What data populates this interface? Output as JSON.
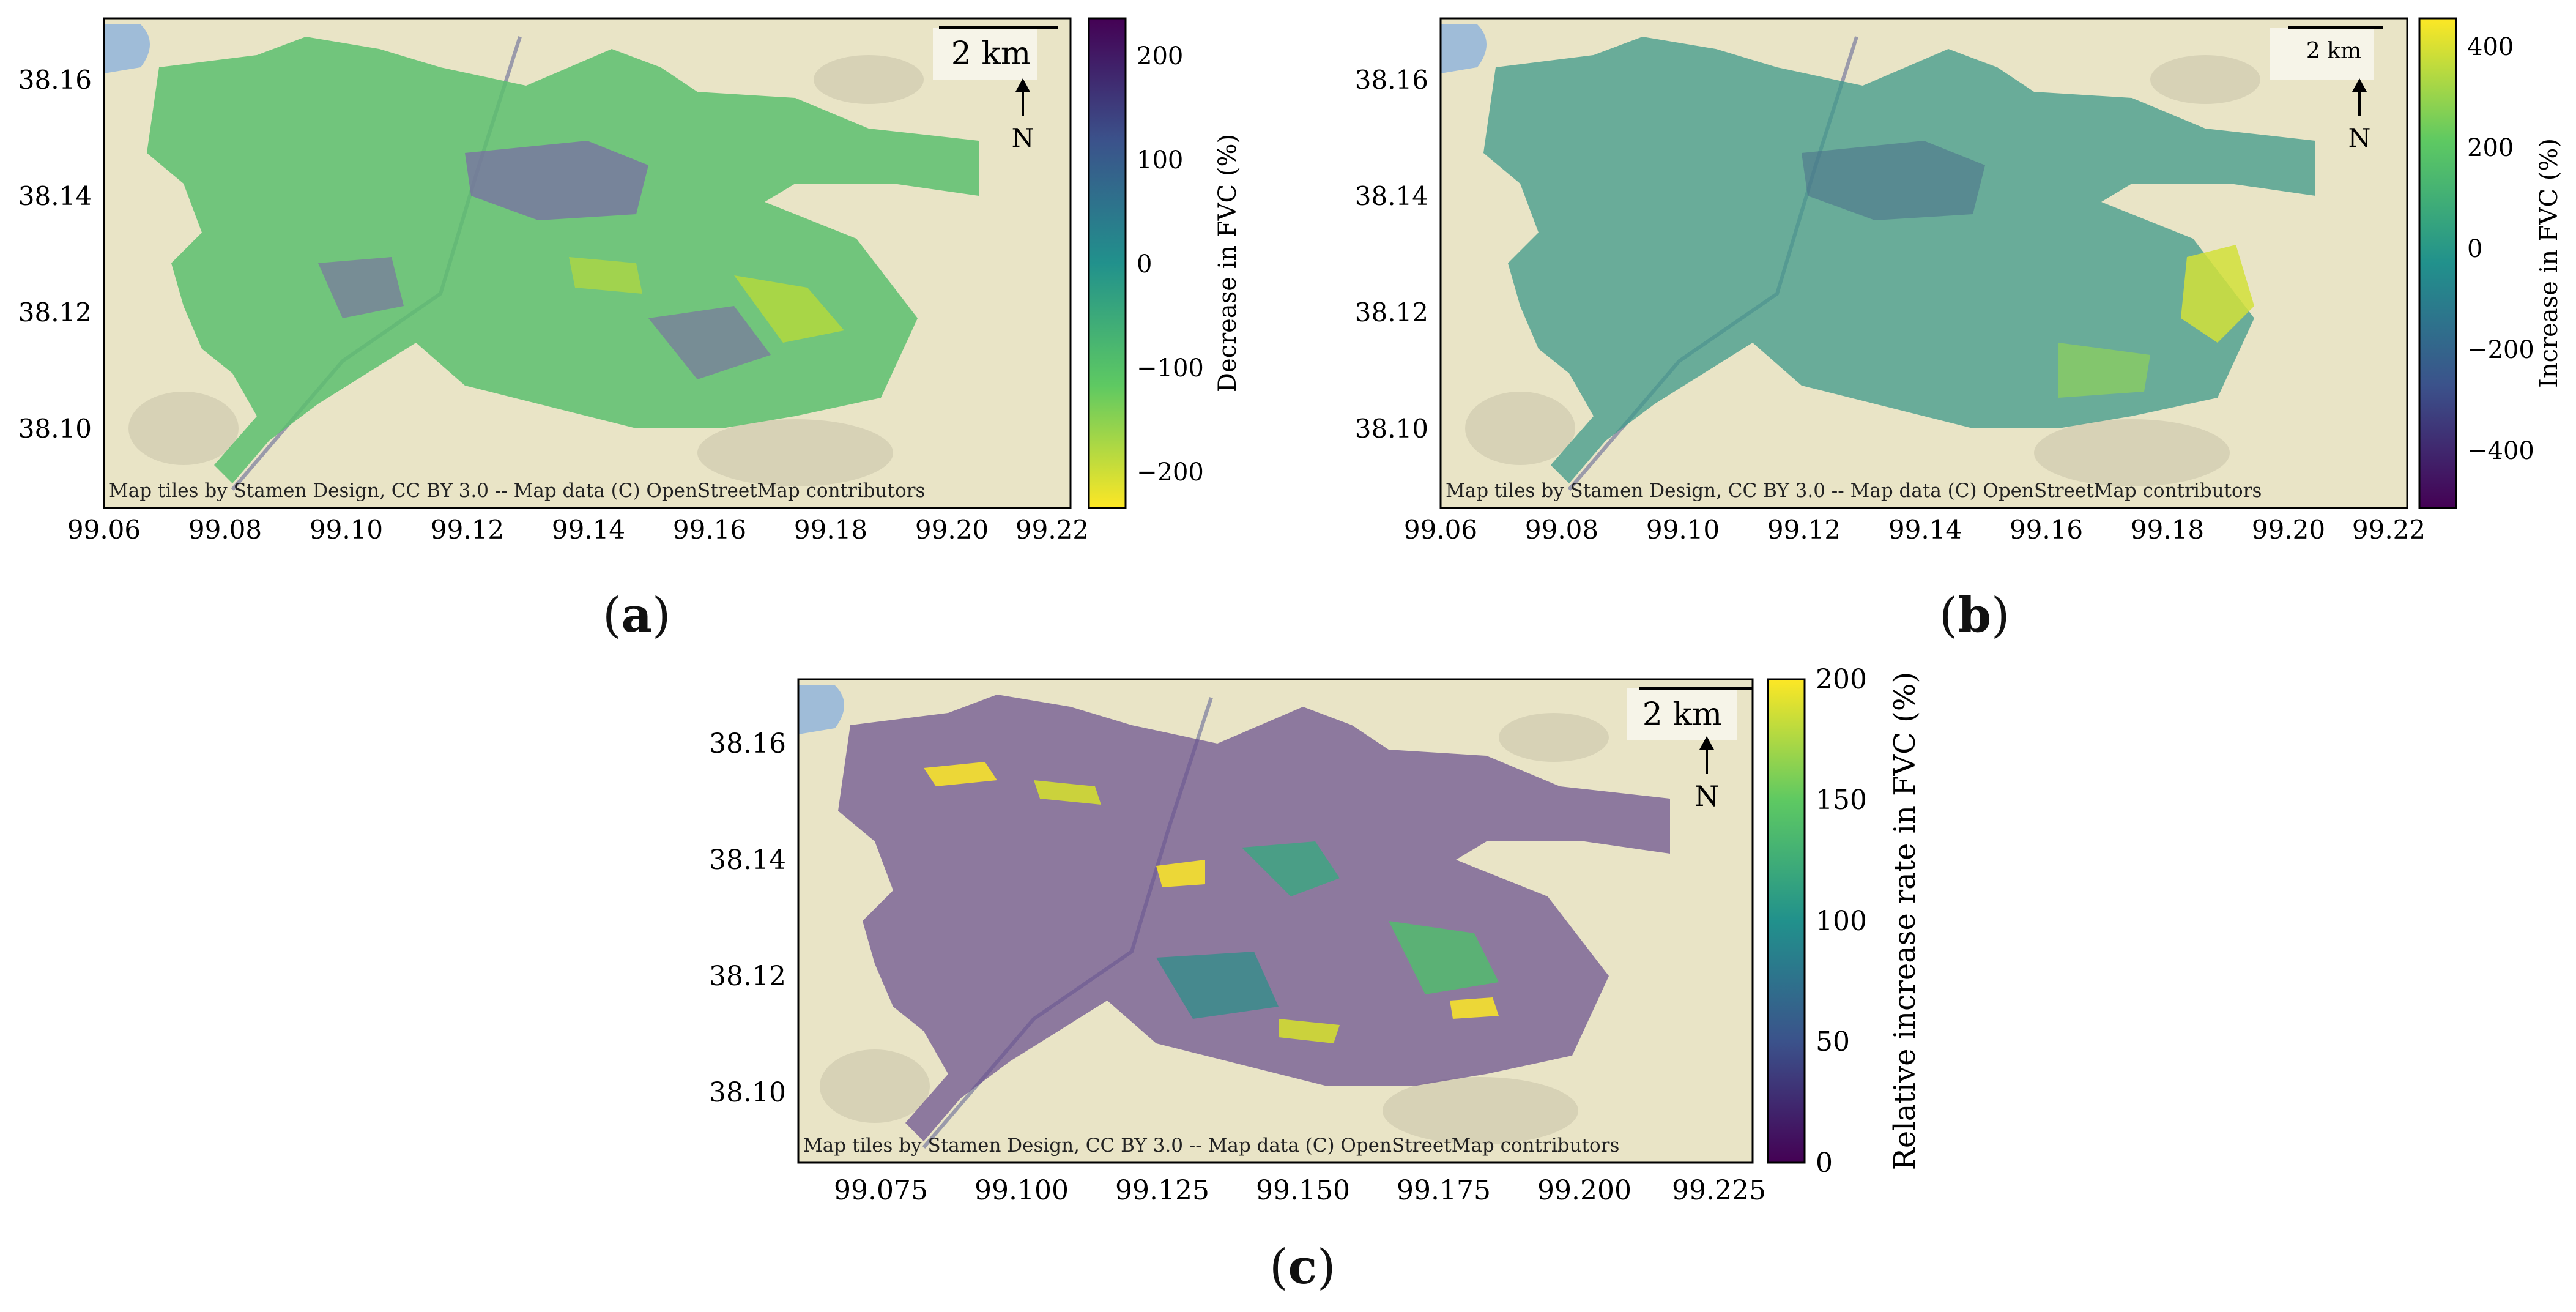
{
  "panels": [
    {
      "id": "a",
      "label": "a",
      "colorbar": {
        "label": "Decrease in FVC (%)",
        "ticks": [
          "200",
          "100",
          "0",
          "−100",
          "−200"
        ],
        "colormap": "viridis",
        "reversed": true
      },
      "xticks": [
        "99.06",
        "99.08",
        "99.10",
        "99.12",
        "99.14",
        "99.16",
        "99.18",
        "99.20",
        "99.22"
      ],
      "yticks": [
        "38.16",
        "38.14",
        "38.12",
        "38.10"
      ],
      "scalebar": "2 km",
      "north": "N",
      "attribution": "Map tiles by Stamen Design, CC BY 3.0 -- Map data (C) OpenStreetMap contributors"
    },
    {
      "id": "b",
      "label": "b",
      "colorbar": {
        "label": "Increase in FVC (%)",
        "ticks": [
          "400",
          "200",
          "0",
          "−200",
          "−400"
        ],
        "colormap": "viridis",
        "reversed": false
      },
      "xticks": [
        "99.06",
        "99.08",
        "99.10",
        "99.12",
        "99.14",
        "99.16",
        "99.18",
        "99.20",
        "99.22"
      ],
      "yticks": [
        "38.16",
        "38.14",
        "38.12",
        "38.10"
      ],
      "scalebar": "2 km",
      "north": "N",
      "attribution": "Map tiles by Stamen Design, CC BY 3.0 -- Map data (C) OpenStreetMap contributors"
    },
    {
      "id": "c",
      "label": "c",
      "colorbar": {
        "label": "Relative increase rate in FVC (%)",
        "ticks": [
          "200",
          "150",
          "100",
          "50",
          "0"
        ],
        "colormap": "viridis",
        "reversed": false
      },
      "xticks": [
        "99.075",
        "99.100",
        "99.125",
        "99.150",
        "99.175",
        "99.200",
        "99.225"
      ],
      "yticks": [
        "38.16",
        "38.14",
        "38.12",
        "38.10"
      ],
      "scalebar": "2 km",
      "north": "N",
      "attribution": "Map tiles by Stamen Design, CC BY 3.0 -- Map data (C) OpenStreetMap contributors"
    }
  ],
  "colors": {
    "basemap": "#e9e4c6",
    "relief": "#cfcab0",
    "water": "#9fbcd8",
    "road": "#9a9aaa"
  }
}
